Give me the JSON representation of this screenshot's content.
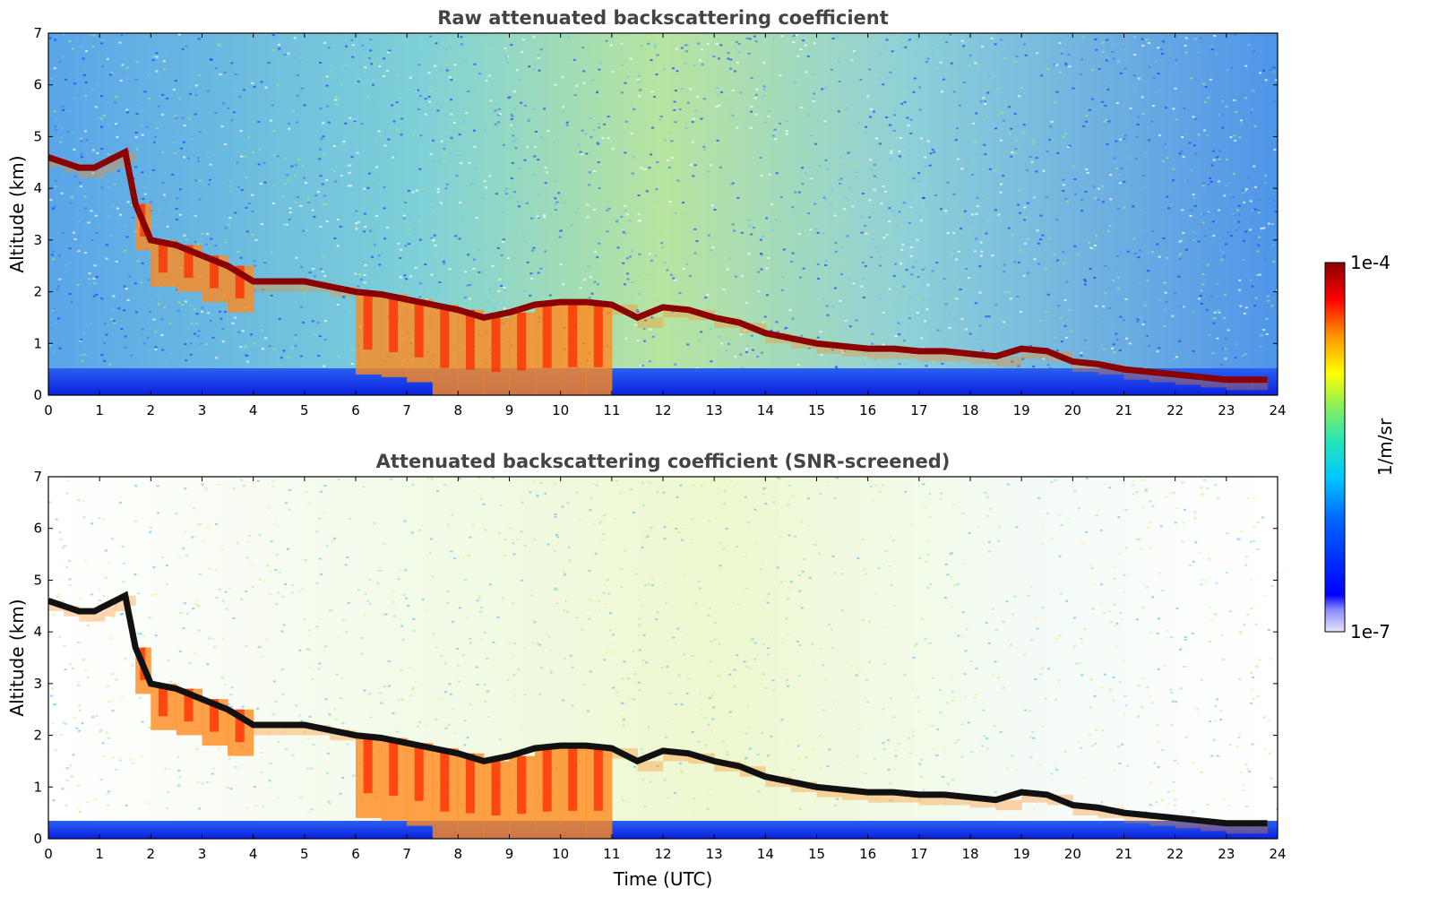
{
  "chart_data": [
    {
      "type": "heatmap",
      "title": "Raw attenuated backscattering coefficient",
      "xlabel": "",
      "ylabel": "Altitude (km)",
      "xlim": [
        0,
        24
      ],
      "ylim": [
        0,
        7
      ],
      "xticks": [
        "0",
        "1",
        "2",
        "3",
        "4",
        "5",
        "6",
        "7",
        "8",
        "9",
        "10",
        "11",
        "12",
        "13",
        "14",
        "15",
        "16",
        "17",
        "18",
        "19",
        "20",
        "21",
        "22",
        "23",
        "24"
      ],
      "yticks": [
        "0",
        "1",
        "2",
        "3",
        "4",
        "5",
        "6",
        "7"
      ],
      "layers": [
        {
          "name": "cloud_base",
          "x": [
            0.0,
            0.3,
            0.6,
            0.9,
            1.1,
            1.3,
            1.5,
            1.7,
            2.0,
            2.5,
            3.0,
            3.5,
            4.0,
            4.3,
            4.6,
            5.0,
            5.5,
            6.0,
            6.5,
            7.0,
            7.5,
            8.0,
            8.5,
            9.0,
            9.5,
            10.0,
            10.5,
            11.0,
            11.5,
            12.0,
            12.5,
            13.0,
            13.5,
            14.0,
            14.5,
            15.0,
            15.5,
            16.0,
            16.5,
            17.0,
            17.5,
            18.0,
            18.5,
            19.0,
            19.5,
            20.0,
            20.5,
            21.0,
            21.5,
            22.0,
            22.5,
            23.0,
            23.5,
            23.8
          ],
          "y": [
            4.6,
            4.5,
            4.4,
            4.4,
            4.5,
            4.6,
            4.7,
            3.7,
            3.0,
            2.9,
            2.7,
            2.5,
            2.2,
            2.2,
            2.2,
            2.2,
            2.1,
            2.0,
            1.95,
            1.85,
            1.75,
            1.65,
            1.5,
            1.6,
            1.75,
            1.8,
            1.8,
            1.75,
            1.5,
            1.7,
            1.65,
            1.5,
            1.4,
            1.2,
            1.1,
            1.0,
            0.95,
            0.9,
            0.9,
            0.85,
            0.85,
            0.8,
            0.75,
            0.9,
            0.85,
            0.65,
            0.6,
            0.5,
            0.45,
            0.4,
            0.35,
            0.3,
            0.3,
            0.3
          ]
        }
      ]
    },
    {
      "type": "heatmap",
      "title": "Attenuated backscattering coefficient (SNR-screened)",
      "xlabel": "Time (UTC)",
      "ylabel": "Altitude (km)",
      "xlim": [
        0,
        24
      ],
      "ylim": [
        0,
        7
      ],
      "xticks": [
        "0",
        "1",
        "2",
        "3",
        "4",
        "5",
        "6",
        "7",
        "8",
        "9",
        "10",
        "11",
        "12",
        "13",
        "14",
        "15",
        "16",
        "17",
        "18",
        "19",
        "20",
        "21",
        "22",
        "23",
        "24"
      ],
      "yticks": [
        "0",
        "1",
        "2",
        "3",
        "4",
        "5",
        "6",
        "7"
      ]
    }
  ],
  "colorbar": {
    "label": "1/m/sr",
    "max_label": "1e-4",
    "min_label": "1e-7",
    "colormap": [
      "#e6e6fa",
      "#0000ff",
      "#0064ff",
      "#00c8ff",
      "#28e6b4",
      "#96f050",
      "#ffff00",
      "#ff9600",
      "#ff0000",
      "#8b0000"
    ]
  },
  "colors": {
    "background_noise": "#3a8fd8",
    "low_level": "#1030e0",
    "cloud_core": "#8b0000",
    "screened_core": "#101010"
  }
}
